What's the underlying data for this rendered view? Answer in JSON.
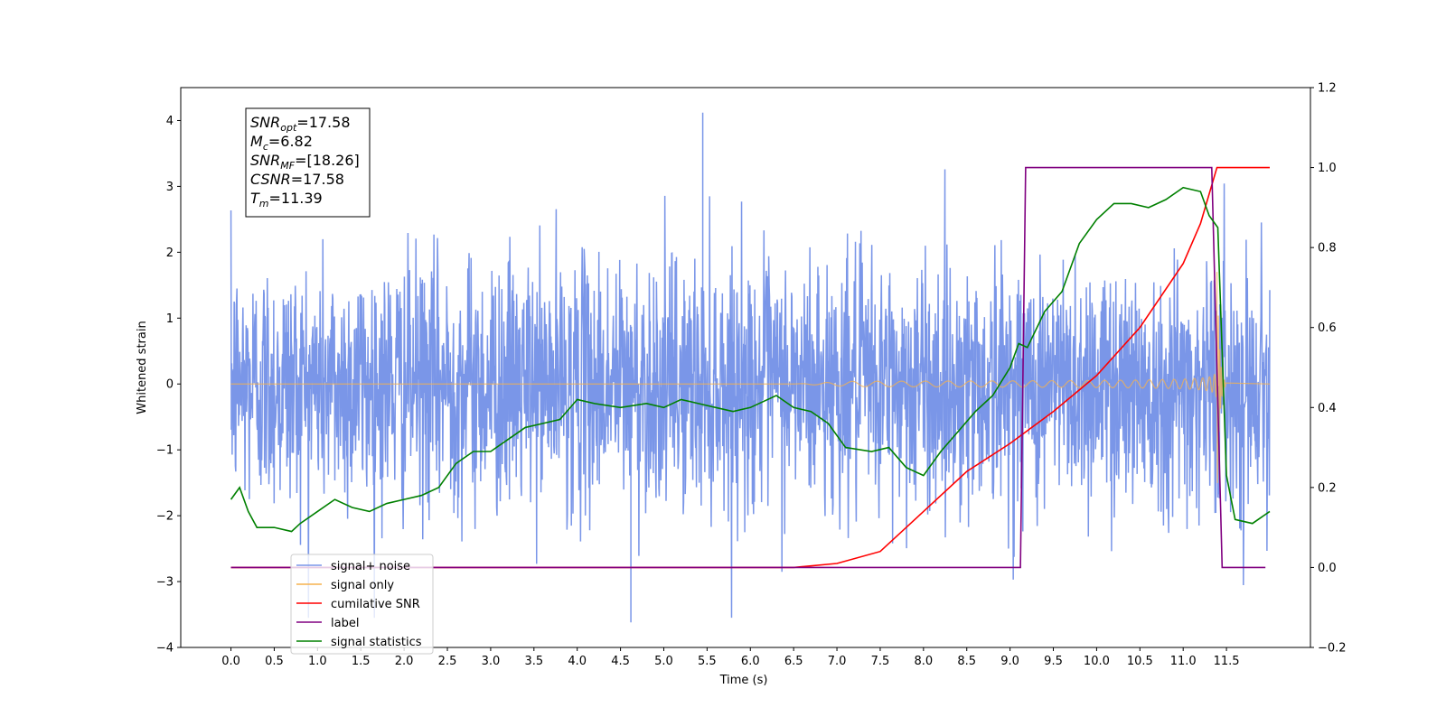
{
  "chart_data": {
    "type": "line",
    "title": "",
    "xlabel": "Time (s)",
    "ylabel": "Whitened strain",
    "y2label": "",
    "xlim": [
      -0.58,
      12.47
    ],
    "ylim": [
      -4,
      4.5
    ],
    "y2lim": [
      -0.2,
      1.2
    ],
    "x_ticks": [
      "0.0",
      "0.5",
      "1.0",
      "1.5",
      "2.0",
      "2.5",
      "3.0",
      "3.5",
      "4.0",
      "4.5",
      "5.0",
      "5.5",
      "6.0",
      "6.5",
      "7.0",
      "7.5",
      "8.0",
      "8.5",
      "9.0",
      "9.5",
      "10.0",
      "10.5",
      "11.0",
      "11.5"
    ],
    "y_ticks": [
      "−4",
      "−3",
      "−2",
      "−1",
      "0",
      "1",
      "2",
      "3",
      "4"
    ],
    "y2_ticks": [
      "−0.2",
      "0.0",
      "0.2",
      "0.4",
      "0.6",
      "0.8",
      "1.0",
      "1.2"
    ],
    "grid": false,
    "legend_position": "lower-left",
    "annotation": {
      "lines": [
        {
          "sym": "SNR",
          "sub": "opt",
          "value": "=17.58"
        },
        {
          "sym": "M",
          "sub": "c",
          "value": "=6.82"
        },
        {
          "sym": "SNR",
          "sub": "MF",
          "value": "=[18.26]"
        },
        {
          "sym": "CSNR",
          "sub": "",
          "value": "=17.58"
        },
        {
          "sym": "T",
          "sub": "m",
          "value": "=11.39"
        }
      ]
    },
    "series": [
      {
        "name": "signal+ noise",
        "axis": "left",
        "color": "#7a96e8",
        "description_values": {
          "x_range": [
            0.0,
            12.0
          ],
          "noise_sd": 0.95,
          "extremes": {
            "max": 4.12,
            "min": -3.62
          }
        }
      },
      {
        "name": "signal only",
        "axis": "left",
        "color": "#f5b24f",
        "description_values": {
          "chirp_start": 6.5,
          "merger": 11.39,
          "peak_amplitude": 1.0
        }
      },
      {
        "name": "cumilative SNR",
        "axis": "right",
        "color": "#ff0000",
        "x": [
          0.0,
          6.5,
          7.0,
          7.5,
          8.0,
          8.5,
          9.0,
          9.5,
          10.0,
          10.5,
          11.0,
          11.2,
          11.39,
          12.0
        ],
        "values": [
          0.0,
          0.0,
          0.01,
          0.04,
          0.14,
          0.24,
          0.31,
          0.39,
          0.48,
          0.6,
          0.76,
          0.86,
          1.0,
          1.0
        ]
      },
      {
        "name": "label",
        "axis": "right",
        "color": "#800080",
        "x": [
          0.0,
          9.12,
          9.18,
          11.33,
          11.45,
          11.95
        ],
        "values": [
          0.0,
          0.0,
          1.0,
          1.0,
          0.0,
          0.0
        ]
      },
      {
        "name": "signal statistics",
        "axis": "right",
        "color": "#008000",
        "x": [
          0.0,
          0.1,
          0.2,
          0.3,
          0.5,
          0.7,
          0.8,
          1.0,
          1.2,
          1.4,
          1.6,
          1.8,
          2.0,
          2.2,
          2.4,
          2.6,
          2.8,
          3.0,
          3.2,
          3.4,
          3.6,
          3.8,
          4.0,
          4.2,
          4.5,
          4.8,
          5.0,
          5.2,
          5.4,
          5.6,
          5.8,
          6.0,
          6.2,
          6.3,
          6.5,
          6.7,
          6.9,
          7.1,
          7.4,
          7.6,
          7.8,
          8.0,
          8.2,
          8.4,
          8.6,
          8.8,
          9.0,
          9.1,
          9.2,
          9.4,
          9.6,
          9.8,
          10.0,
          10.2,
          10.4,
          10.6,
          10.8,
          11.0,
          11.2,
          11.3,
          11.4,
          11.5,
          11.6,
          11.8,
          12.0
        ],
        "values": [
          0.17,
          0.2,
          0.14,
          0.1,
          0.1,
          0.09,
          0.11,
          0.14,
          0.17,
          0.15,
          0.14,
          0.16,
          0.17,
          0.18,
          0.2,
          0.26,
          0.29,
          0.29,
          0.32,
          0.35,
          0.36,
          0.37,
          0.42,
          0.41,
          0.4,
          0.41,
          0.4,
          0.42,
          0.41,
          0.4,
          0.39,
          0.4,
          0.42,
          0.43,
          0.4,
          0.39,
          0.36,
          0.3,
          0.29,
          0.3,
          0.25,
          0.23,
          0.29,
          0.34,
          0.39,
          0.43,
          0.5,
          0.56,
          0.55,
          0.64,
          0.69,
          0.81,
          0.87,
          0.91,
          0.91,
          0.9,
          0.92,
          0.95,
          0.94,
          0.88,
          0.85,
          0.23,
          0.12,
          0.11,
          0.14
        ]
      }
    ]
  }
}
